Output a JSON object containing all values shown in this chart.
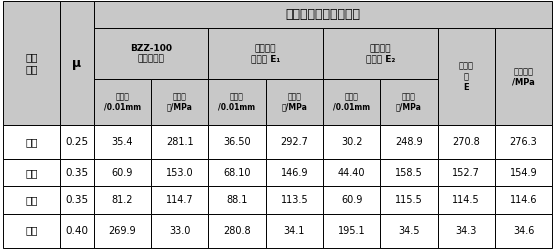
{
  "title": "路基回弹模量测试方法",
  "left_col0": "路基\n填料",
  "left_col1": "μ",
  "grp1_label": "BZZ-100\n标准检测车",
  "grp2_label": "双后轴车\n轮隙间 E₁",
  "grp3_label": "双后轴车\n轮内侧 E₂",
  "grp4_label": "双后轴\n车\nE",
  "grp5_label": "承载板法\n/MPa",
  "sub1a": "弯沉值\n/0.01mm",
  "sub1b": "回弹模\n量/MPa",
  "sub2a": "弯沉值\n/0.01mm",
  "sub2b": "回弹模\n量/MPa",
  "sub3a": "弯沉值\n/0.01mm",
  "sub3b": "回弹模\n量/MPa",
  "sub4": "回弹模\n量/MPa",
  "rows": [
    [
      "灰土",
      "0.25",
      "35.4",
      "281.1",
      "36.50",
      "292.7",
      "30.2",
      "248.9",
      "270.8",
      "276.3"
    ],
    [
      "砂砾",
      "0.35",
      "60.9",
      "153.0",
      "68.10",
      "146.9",
      "44.40",
      "158.5",
      "152.7",
      "154.9"
    ],
    [
      "土石",
      "0.35",
      "81.2",
      "114.7",
      "88.1",
      "113.5",
      "60.9",
      "115.5",
      "114.5",
      "114.6"
    ],
    [
      "黄土",
      "0.40",
      "269.9",
      "33.0",
      "280.8",
      "34.1",
      "195.1",
      "34.5",
      "34.3",
      "34.6"
    ]
  ],
  "hdr_bg": "#c8c8c8",
  "data_bg": "#ffffff",
  "border": "#000000"
}
